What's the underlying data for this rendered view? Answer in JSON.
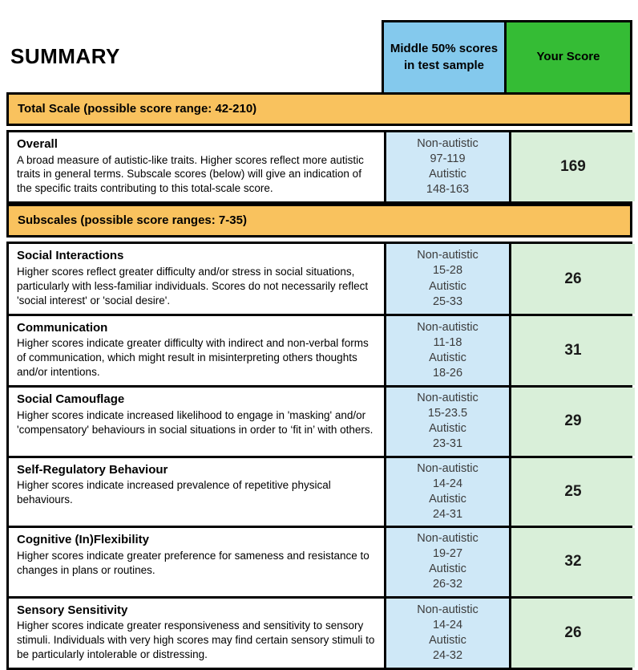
{
  "page": {
    "title": "SUMMARY"
  },
  "header": {
    "middle_col_line1": "Middle 50% scores",
    "middle_col_line2": "in test sample",
    "score_col": "Your Score"
  },
  "bands": {
    "total": "Total Scale (possible score range: 42-210)",
    "subscales": "Subscales (possible score ranges: 7-35)"
  },
  "labels": {
    "non_autistic": "Non-autistic",
    "autistic": "Autistic"
  },
  "rows": [
    {
      "title": "Overall",
      "description": "A broad measure of autistic-like traits. Higher scores reflect more autistic traits in general terms. Subscale scores (below) will give an indication of the specific traits contributing to this total-scale score.",
      "non_autistic_range": "97-119",
      "autistic_range": "148-163",
      "score": "169"
    },
    {
      "title": "Social Interactions",
      "description": "Higher scores reflect greater difficulty and/or stress in social situations, particularly with less-familiar individuals. Scores do not necessarily reflect 'social interest' or 'social desire'.",
      "non_autistic_range": "15-28",
      "autistic_range": "25-33",
      "score": "26"
    },
    {
      "title": "Communication",
      "description": "Higher scores indicate greater difficulty with indirect and non-verbal forms of communication, which might result in misinterpreting others thoughts and/or intentions.",
      "non_autistic_range": "11-18",
      "autistic_range": "18-26",
      "score": "31"
    },
    {
      "title": "Social Camouflage",
      "description": "Higher scores indicate increased likelihood to engage in 'masking' and/or 'compensatory' behaviours in social situations in order to ‘fit in’ with others.",
      "non_autistic_range": "15-23.5",
      "autistic_range": "23-31",
      "score": "29"
    },
    {
      "title": "Self-Regulatory Behaviour",
      "description": "Higher scores indicate increased prevalence of repetitive physical behaviours.",
      "non_autistic_range": "14-24",
      "autistic_range": "24-31",
      "score": "25"
    },
    {
      "title": "Cognitive (In)Flexibility",
      "description": "Higher scores indicate greater preference for sameness and resistance to changes in plans or routines.",
      "non_autistic_range": "19-27",
      "autistic_range": "26-32",
      "score": "32"
    },
    {
      "title": "Sensory Sensitivity",
      "description": "Higher scores indicate greater responsiveness and sensitivity to sensory stimuli. Individuals with very high scores may find certain sensory stimuli to be particularly intolerable or distressing.",
      "non_autistic_range": "14-24",
      "autistic_range": "24-32",
      "score": "26"
    }
  ],
  "colors": {
    "header_blue": "#84C9ED",
    "header_green": "#35BC35",
    "band_orange": "#F9C25E",
    "body_blue": "#CFE8F7",
    "body_green": "#D9EFD9",
    "border": "#000000"
  }
}
